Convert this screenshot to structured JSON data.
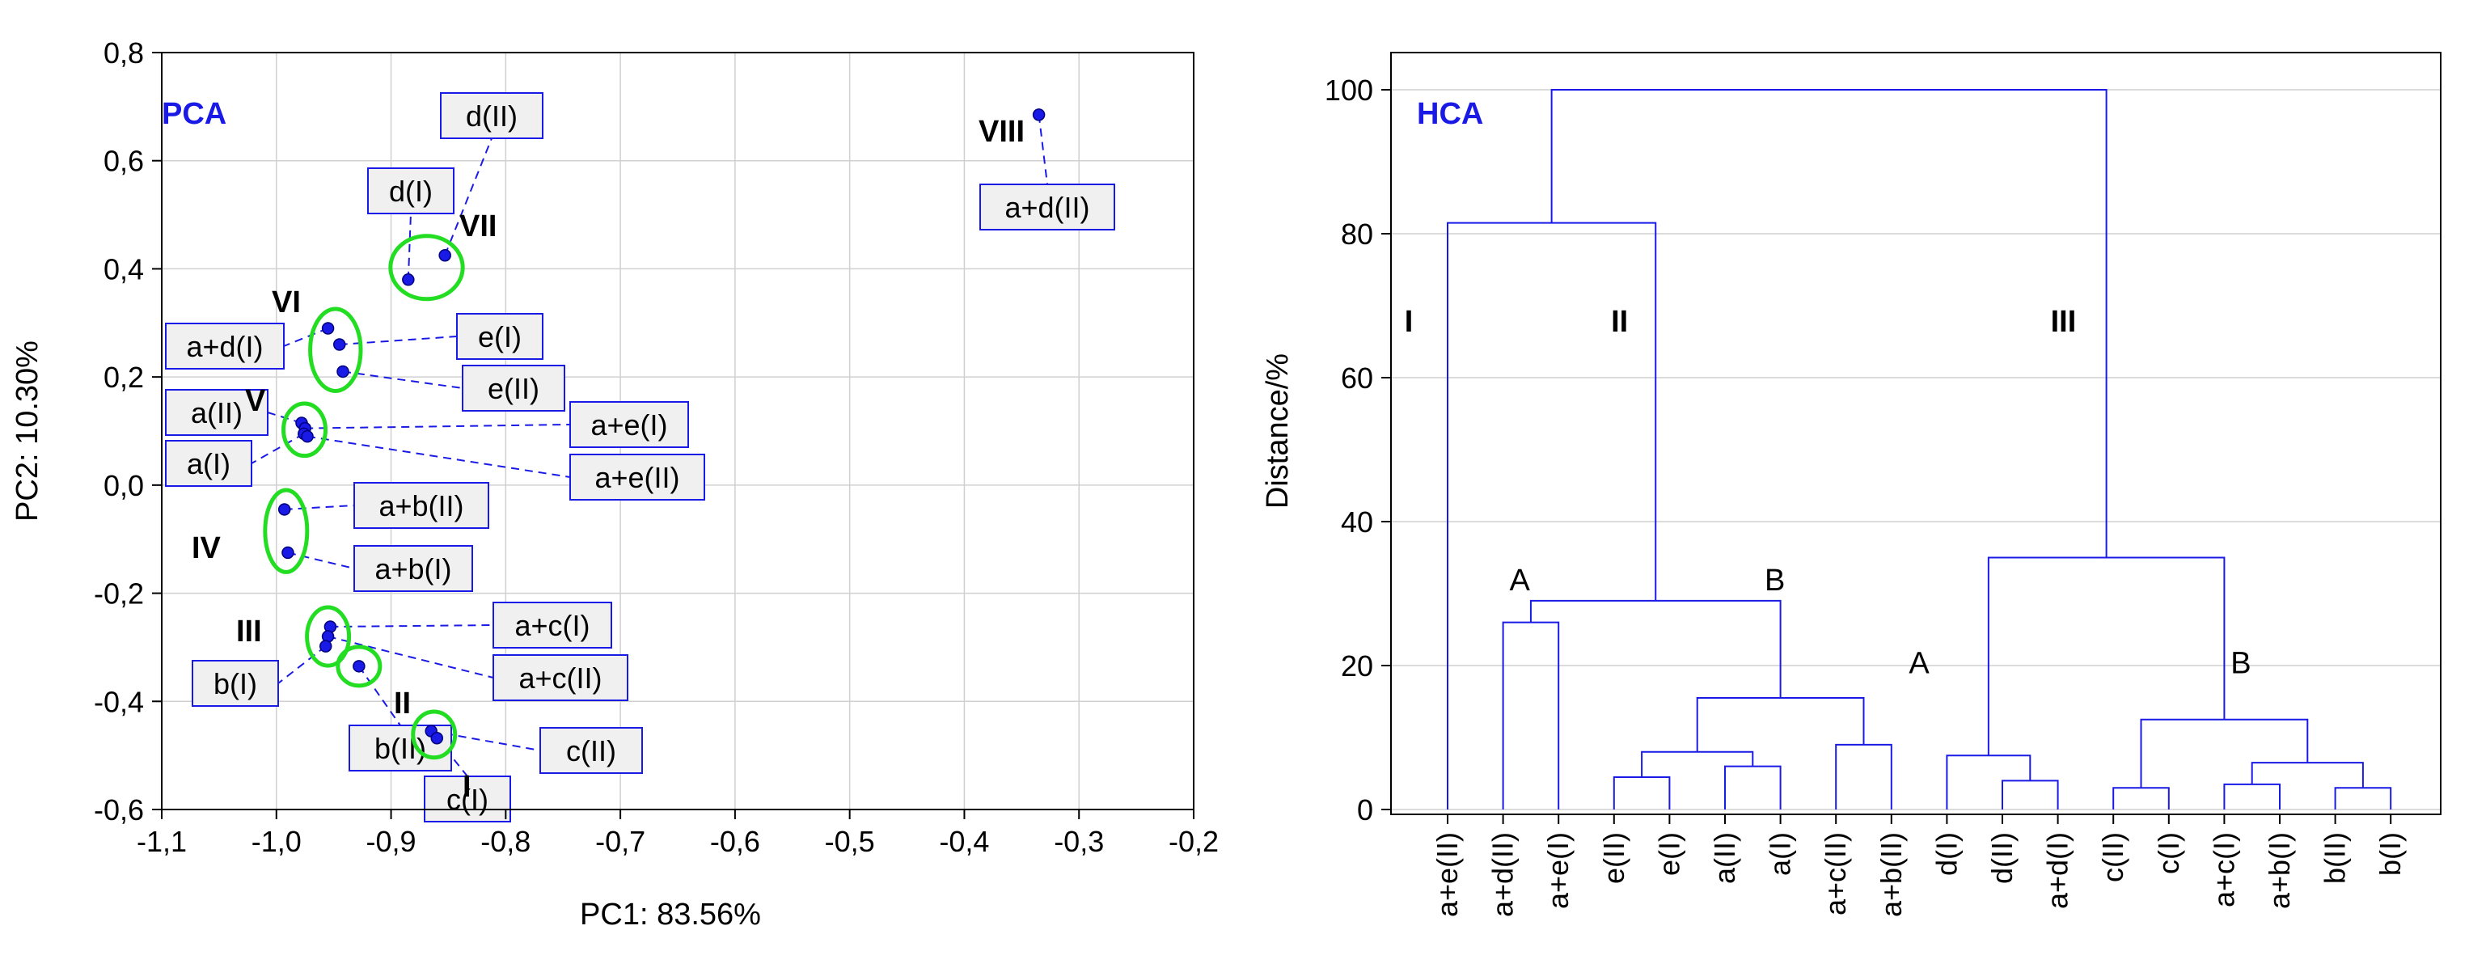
{
  "chart_data": [
    {
      "type": "scatter",
      "badge": "PCA",
      "xlabel": "PC1: 83.56%",
      "ylabel": "PC2: 10.30%",
      "xlim": [
        -1.1,
        -0.2
      ],
      "ylim": [
        -0.6,
        0.8
      ],
      "grid": true,
      "xticks": [
        "-1,1",
        "-1,0",
        "-0,9",
        "-0,8",
        "-0,7",
        "-0,6",
        "-0,5",
        "-0,4",
        "-0,3",
        "-0,2"
      ],
      "yticks": [
        "-0,6",
        "-0,4",
        "-0,2",
        "0,0",
        "0,2",
        "0,4",
        "0,6",
        "0,8"
      ],
      "points": [
        {
          "label": "a+d(II)",
          "x": -0.335,
          "y": 0.685,
          "group": "VIII"
        },
        {
          "label": "d(II)",
          "x": -0.853,
          "y": 0.425,
          "group": "VII"
        },
        {
          "label": "d(I)",
          "x": -0.885,
          "y": 0.38,
          "group": "VII"
        },
        {
          "label": "a+d(I)",
          "x": -0.955,
          "y": 0.29,
          "group": "VI"
        },
        {
          "label": "e(I)",
          "x": -0.945,
          "y": 0.26,
          "group": "VI"
        },
        {
          "label": "e(II)",
          "x": -0.942,
          "y": 0.21,
          "group": "VI"
        },
        {
          "label": "a(II)",
          "x": -0.978,
          "y": 0.115,
          "group": "V"
        },
        {
          "label": "a+e(I)",
          "x": -0.975,
          "y": 0.105,
          "group": "V"
        },
        {
          "label": "a(I)",
          "x": -0.976,
          "y": 0.095,
          "group": "V"
        },
        {
          "label": "a+e(II)",
          "x": -0.973,
          "y": 0.09,
          "group": "V"
        },
        {
          "label": "a+b(II)",
          "x": -0.993,
          "y": -0.045,
          "group": "IV"
        },
        {
          "label": "a+b(I)",
          "x": -0.99,
          "y": -0.125,
          "group": "IV"
        },
        {
          "label": "a+c(I)",
          "x": -0.953,
          "y": -0.262,
          "group": "III"
        },
        {
          "label": "a+c(II)",
          "x": -0.955,
          "y": -0.28,
          "group": "III"
        },
        {
          "label": "b(I)",
          "x": -0.957,
          "y": -0.298,
          "group": "III"
        },
        {
          "label": "b(II)",
          "x": -0.928,
          "y": -0.335,
          "group": "II"
        },
        {
          "label": "c(II)",
          "x": -0.865,
          "y": -0.455,
          "group": "I"
        },
        {
          "label": "c(I)",
          "x": -0.86,
          "y": -0.468,
          "group": "I"
        }
      ],
      "groups": [
        "I",
        "II",
        "III",
        "IV",
        "V",
        "VI",
        "VII",
        "VIII"
      ],
      "colors": {
        "points": "#1a1ae6",
        "ellipses": "#22dd22",
        "leaders": "#1a1ae6",
        "label_fill": "#f0f0f0"
      }
    },
    {
      "type": "dendrogram",
      "badge": "HCA",
      "ylabel": "Distance/%",
      "ylim": [
        0,
        100
      ],
      "grid": true,
      "yticks": [
        "0",
        "20",
        "40",
        "60",
        "80",
        "100"
      ],
      "leaves": [
        "a+e(II)",
        "a+d(II)",
        "a+e(I)",
        "e(II)",
        "e(I)",
        "a(II)",
        "a(I)",
        "a+c(II)",
        "a+b(II)",
        "d(I)",
        "d(II)",
        "a+d(I)",
        "c(II)",
        "c(I)",
        "a+c(I)",
        "a+b(I)",
        "b(II)",
        "b(I)"
      ],
      "merges": [
        {
          "l": 1,
          "r": 2,
          "h": 26
        },
        {
          "l": 3,
          "r": 4,
          "h": 4.5
        },
        {
          "l": 5,
          "r": 6,
          "h": 6
        },
        {
          "l": "m1",
          "r": "m2",
          "h": 8
        },
        {
          "l": 7,
          "r": 8,
          "h": 9
        },
        {
          "l": "m3",
          "r": "m4",
          "h": 15.5
        },
        {
          "l": "m0",
          "r": "m5",
          "h": 29
        },
        {
          "l": 0,
          "r": "m6",
          "h": 81.5
        },
        {
          "l": 10,
          "r": 11,
          "h": 4
        },
        {
          "l": 9,
          "r": "m8",
          "h": 7.5
        },
        {
          "l": 12,
          "r": 13,
          "h": 3
        },
        {
          "l": 14,
          "r": 15,
          "h": 3.5
        },
        {
          "l": 16,
          "r": 17,
          "h": 3
        },
        {
          "l": "m11",
          "r": "m12",
          "h": 6.5
        },
        {
          "l": "m10",
          "r": "m13",
          "h": 12.5
        },
        {
          "l": "m9",
          "r": "m14",
          "h": 35
        },
        {
          "l": "m7",
          "r": "m15",
          "h": 100
        }
      ],
      "cluster_labels": [
        {
          "text": "I",
          "style": "roman",
          "leaf_pos": -0.7,
          "h": 68
        },
        {
          "text": "II",
          "style": "roman",
          "leaf_pos": 3.1,
          "h": 68
        },
        {
          "text": "III",
          "style": "roman",
          "leaf_pos": 11.1,
          "h": 68
        },
        {
          "text": "A",
          "style": "plain",
          "leaf_pos": 1.3,
          "h": 32
        },
        {
          "text": "B",
          "style": "plain",
          "leaf_pos": 5.9,
          "h": 32
        },
        {
          "text": "A",
          "style": "plain",
          "leaf_pos": 8.5,
          "h": 20.5
        },
        {
          "text": "B",
          "style": "plain",
          "leaf_pos": 14.3,
          "h": 20.5
        }
      ],
      "colors": {
        "lines": "#1a1ae6"
      }
    }
  ]
}
